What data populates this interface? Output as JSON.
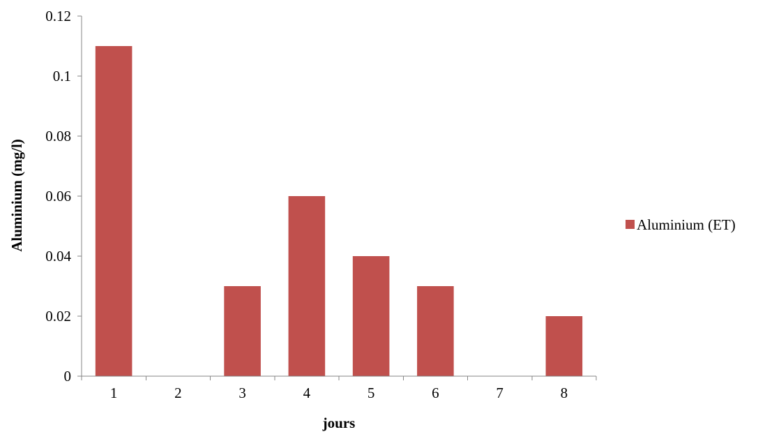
{
  "chart_data": {
    "type": "bar",
    "categories": [
      "1",
      "2",
      "3",
      "4",
      "5",
      "6",
      "7",
      "8"
    ],
    "series": [
      {
        "name": "Aluminium (ET)",
        "values": [
          0.11,
          0,
          0.03,
          0.06,
          0.04,
          0.03,
          0,
          0.02
        ],
        "color": "#C0504D"
      }
    ],
    "title": "",
    "xlabel": "jours",
    "ylabel": "Aluminium (mg/l)",
    "ylim": [
      0,
      0.12
    ],
    "yticks": [
      "0",
      "0.02",
      "0.04",
      "0.06",
      "0.08",
      "0.1",
      "0.12"
    ],
    "grid": false,
    "legend_position": "right"
  }
}
